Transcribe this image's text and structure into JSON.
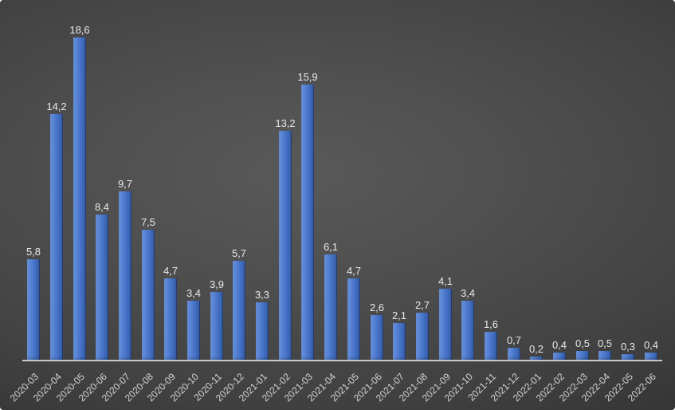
{
  "chart_data": {
    "type": "bar",
    "title": "",
    "xlabel": "",
    "ylabel": "",
    "legend": "none",
    "grid": false,
    "ylim": [
      0,
      18.6
    ],
    "decimal_separator": ",",
    "categories": [
      "2020-03",
      "2020-04",
      "2020-05",
      "2020-06",
      "2020-07",
      "2020-08",
      "2020-09",
      "2020-10",
      "2020-11",
      "2020-12",
      "2021-01",
      "2021-02",
      "2021-03",
      "2021-04",
      "2021-05",
      "2021-06",
      "2021-07",
      "2021-08",
      "2021-09",
      "2021-10",
      "2021-11",
      "2021-12",
      "2022-01",
      "2022-02",
      "2022-03",
      "2022-04",
      "2022-05",
      "2022-06"
    ],
    "values": [
      5.8,
      14.2,
      18.6,
      8.4,
      9.7,
      7.5,
      4.7,
      3.4,
      3.9,
      5.7,
      3.3,
      13.2,
      15.9,
      6.1,
      4.7,
      2.6,
      2.1,
      2.7,
      4.1,
      3.4,
      1.6,
      0.7,
      0.2,
      0.4,
      0.5,
      0.5,
      0.3,
      0.4
    ],
    "value_labels": [
      "5,8",
      "14,2",
      "18,6",
      "8,4",
      "9,7",
      "7,5",
      "4,7",
      "3,4",
      "3,9",
      "5,7",
      "3,3",
      "13,2",
      "15,9",
      "6,1",
      "4,7",
      "2,6",
      "2,1",
      "2,7",
      "4,1",
      "3,4",
      "1,6",
      "0,7",
      "0,2",
      "0,4",
      "0,5",
      "0,5",
      "0,3",
      "0,4"
    ],
    "colors": {
      "bar_light": "#7098e0",
      "bar_mid": "#4674c8",
      "bar_dark": "#35589e",
      "value_label": "#e9e9e9",
      "category_label": "#d4d4d4",
      "axis_line": "#c9c9c9",
      "background_center": "#595959",
      "background_edge": "#272727"
    }
  }
}
